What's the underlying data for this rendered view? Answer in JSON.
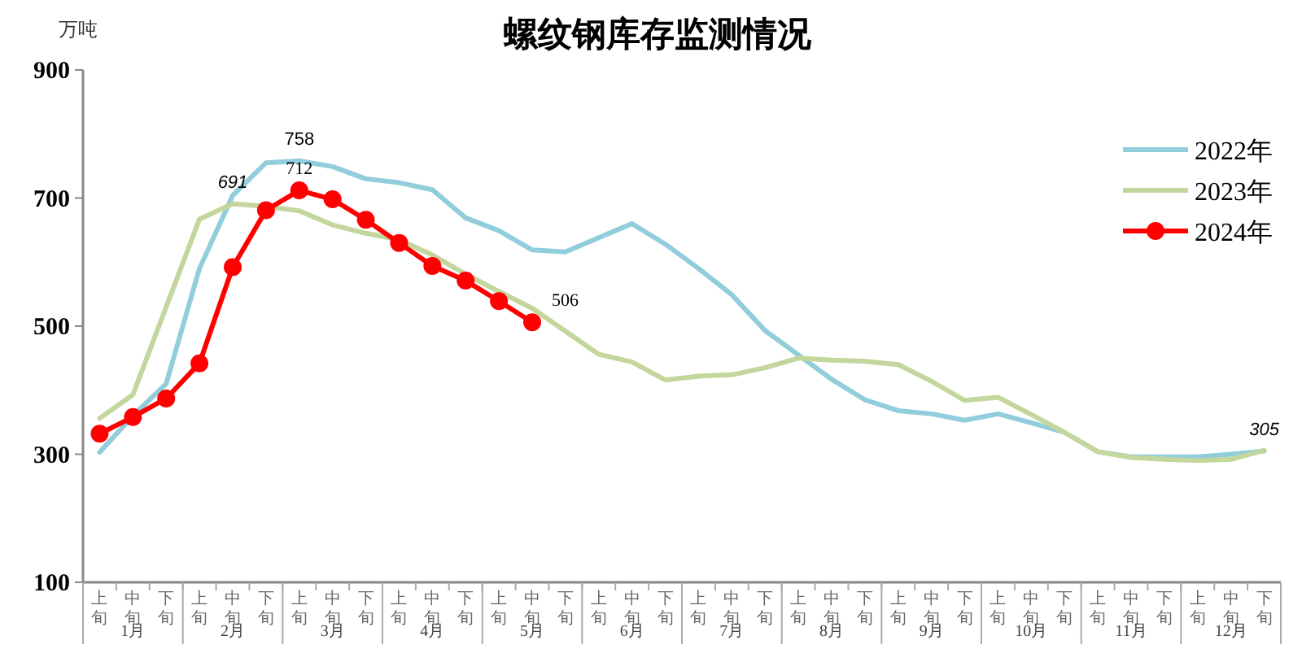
{
  "chart_data": {
    "type": "line",
    "title": "螺纹钢库存监测情况",
    "ylabel": "万吨",
    "categories": [
      "上旬",
      "中旬",
      "下旬",
      "上旬",
      "中旬",
      "下旬",
      "上旬",
      "中旬",
      "下旬",
      "上旬",
      "中旬",
      "下旬",
      "上旬",
      "中旬",
      "下旬",
      "上旬",
      "中旬",
      "下旬",
      "上旬",
      "中旬",
      "下旬",
      "上旬",
      "中旬",
      "下旬",
      "上旬",
      "中旬",
      "下旬",
      "上旬",
      "中旬",
      "下旬",
      "上旬",
      "中旬",
      "下旬",
      "上旬",
      "中旬",
      "下旬"
    ],
    "annotations": [
      "1月",
      "2月",
      "3月",
      "4月",
      "5月",
      "6月",
      "7月",
      "8月",
      "9月",
      "10月",
      "11月",
      "12月"
    ],
    "ylim": [
      100,
      900
    ],
    "yticks": [
      100,
      300,
      500,
      700,
      900
    ],
    "grid": false,
    "legend": "top right",
    "series": [
      {
        "name": "2022年",
        "color": "#92cddc",
        "marker": "none",
        "values": [
          303,
          360,
          410,
          590,
          704,
          755,
          758,
          749,
          730,
          724,
          713,
          669,
          649,
          619,
          616,
          638,
          660,
          628,
          590,
          549,
          493,
          455,
          417,
          385,
          368,
          363,
          353,
          363,
          349,
          334,
          304,
          296,
          296,
          296,
          300,
          305
        ],
        "value_labels": [
          null,
          null,
          null,
          null,
          null,
          null,
          "758",
          null,
          null,
          null,
          null,
          null,
          null,
          null,
          null,
          null,
          null,
          null,
          null,
          null,
          null,
          null,
          null,
          null,
          null,
          null,
          null,
          null,
          null,
          null,
          null,
          null,
          null,
          null,
          null,
          "305"
        ]
      },
      {
        "name": "2023年",
        "color": "#c3d69b",
        "marker": "none",
        "values": [
          356,
          393,
          530,
          667,
          691,
          687,
          680,
          658,
          645,
          635,
          611,
          581,
          554,
          528,
          492,
          456,
          444,
          416,
          422,
          424,
          435,
          450,
          447,
          445,
          440,
          414,
          384,
          389,
          362,
          334,
          304,
          295,
          292,
          290,
          292,
          306
        ],
        "value_labels": [
          null,
          null,
          null,
          null,
          "691",
          null,
          null,
          null,
          null,
          null,
          null,
          null,
          null,
          null,
          null,
          null,
          null,
          null,
          null,
          null,
          null,
          null,
          null,
          null,
          null,
          null,
          null,
          null,
          null,
          null,
          null,
          null,
          null,
          null,
          null,
          null
        ]
      },
      {
        "name": "2024年",
        "color": "#ff0000",
        "marker": "circle",
        "values": [
          332,
          358,
          387,
          442,
          592,
          681,
          712,
          698,
          666,
          630,
          594,
          571,
          539,
          506,
          null,
          null,
          null,
          null,
          null,
          null,
          null,
          null,
          null,
          null,
          null,
          null,
          null,
          null,
          null,
          null,
          null,
          null,
          null,
          null,
          null,
          null
        ],
        "value_labels": [
          null,
          null,
          null,
          null,
          null,
          null,
          "712",
          null,
          null,
          null,
          null,
          null,
          null,
          "506",
          null,
          null,
          null,
          null,
          null,
          null,
          null,
          null,
          null,
          null,
          null,
          null,
          null,
          null,
          null,
          null,
          null,
          null,
          null,
          null,
          null,
          null
        ]
      }
    ]
  }
}
